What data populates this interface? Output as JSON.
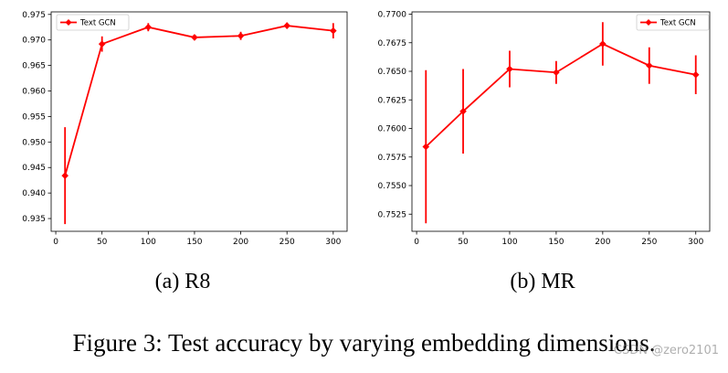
{
  "chart_data": [
    {
      "type": "line",
      "x": [
        10,
        50,
        100,
        150,
        200,
        250,
        300
      ],
      "series": [
        {
          "name": "Text GCN",
          "values": [
            0.9434,
            0.9692,
            0.9725,
            0.9705,
            0.9708,
            0.9728,
            0.9718
          ],
          "error": [
            0.0095,
            0.0015,
            0.0008,
            0.0005,
            0.0008,
            0.0006,
            0.0015
          ]
        }
      ],
      "xlim": [
        -5,
        315
      ],
      "ylim": [
        0.9325,
        0.9755
      ],
      "xticks": [
        "0",
        "50",
        "100",
        "150",
        "200",
        "250",
        "300"
      ],
      "yticks": [
        "0.935",
        "0.940",
        "0.945",
        "0.950",
        "0.955",
        "0.960",
        "0.965",
        "0.970",
        "0.975"
      ],
      "ytick_values": [
        0.935,
        0.94,
        0.945,
        0.95,
        0.955,
        0.96,
        0.965,
        0.97,
        0.975
      ],
      "xtick_values": [
        0,
        50,
        100,
        150,
        200,
        250,
        300
      ],
      "legend": "top-left",
      "grid": false,
      "caption": "(a) R8"
    },
    {
      "type": "line",
      "x": [
        10,
        50,
        100,
        150,
        200,
        250,
        300
      ],
      "series": [
        {
          "name": "Text GCN",
          "values": [
            0.7584,
            0.7615,
            0.7652,
            0.7649,
            0.7674,
            0.7655,
            0.7647
          ],
          "error": [
            0.0067,
            0.0037,
            0.0016,
            0.001,
            0.0019,
            0.0016,
            0.0017
          ]
        }
      ],
      "xlim": [
        -5,
        315
      ],
      "ylim": [
        0.751,
        0.7702
      ],
      "xticks": [
        "0",
        "50",
        "100",
        "150",
        "200",
        "250",
        "300"
      ],
      "yticks": [
        "0.7525",
        "0.7550",
        "0.7575",
        "0.7600",
        "0.7625",
        "0.7650",
        "0.7675",
        "0.7700"
      ],
      "ytick_values": [
        0.7525,
        0.755,
        0.7575,
        0.76,
        0.7625,
        0.765,
        0.7675,
        0.77
      ],
      "xtick_values": [
        0,
        50,
        100,
        150,
        200,
        250,
        300
      ],
      "legend": "top-right",
      "grid": false,
      "caption": "(b) MR"
    }
  ],
  "figure_caption": "Figure 3: Test accuracy by varying embedding dimensions.",
  "watermark": "CSDN @zero2101",
  "colors": {
    "series": "#ff0000",
    "axis": "#000000",
    "background": "#ffffff"
  }
}
